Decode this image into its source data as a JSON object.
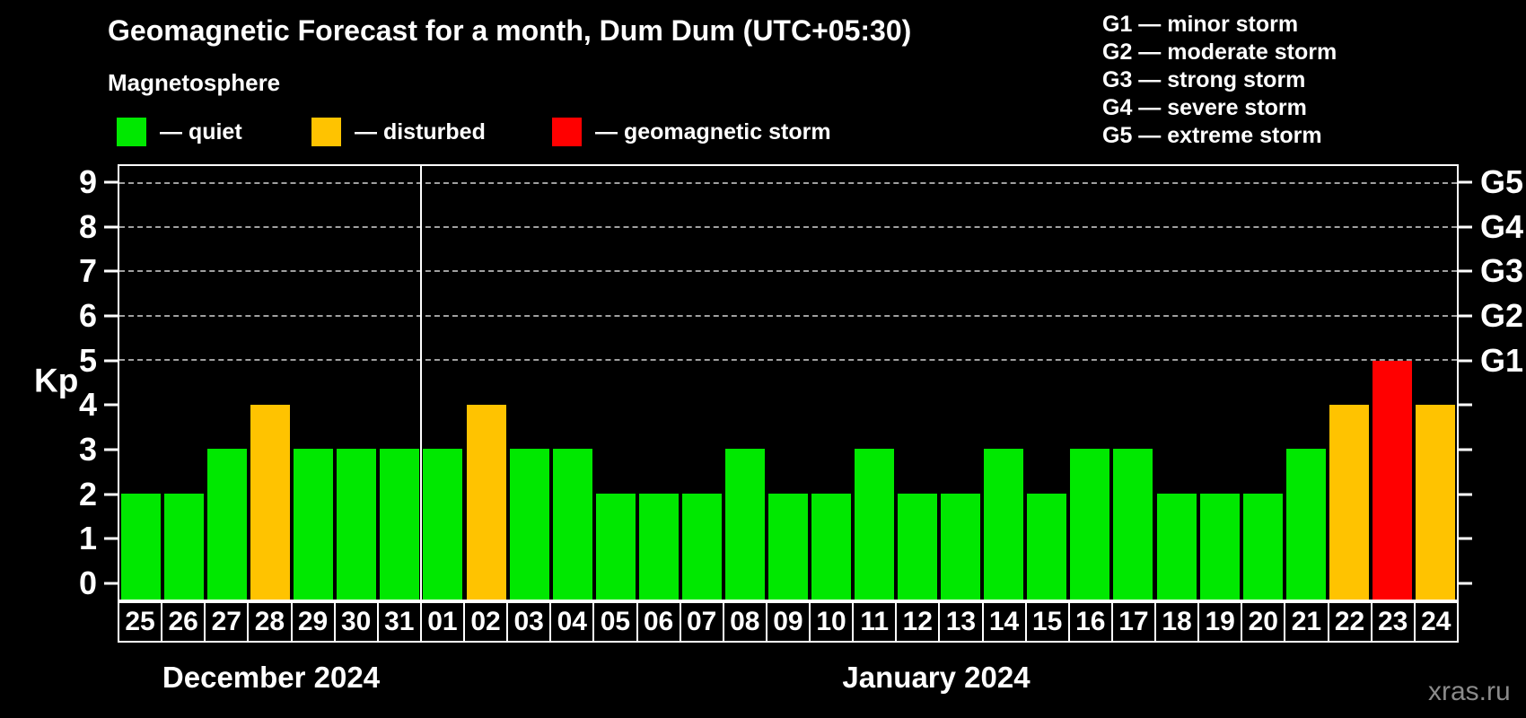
{
  "title": "Geomagnetic Forecast for a month, Dum Dum (UTC+05:30)",
  "subtitle": "Magnetosphere",
  "legend": {
    "items": [
      {
        "key": "quiet",
        "label": "— quiet",
        "color": "#00e800"
      },
      {
        "key": "disturbed",
        "label": "— disturbed",
        "color": "#ffc300"
      },
      {
        "key": "storm",
        "label": "— geomagnetic storm",
        "color": "#ff0000"
      }
    ]
  },
  "g_scale_legend": [
    "G1 — minor storm",
    "G2 — moderate storm",
    "G3 — strong storm",
    "G4 — severe storm",
    "G5 — extreme storm"
  ],
  "axis": {
    "y_label": "Kp",
    "y_ticks": [
      0,
      1,
      2,
      3,
      4,
      5,
      6,
      7,
      8,
      9
    ],
    "g_levels": [
      {
        "label": "G1",
        "kp": 5
      },
      {
        "label": "G2",
        "kp": 6
      },
      {
        "label": "G3",
        "kp": 7
      },
      {
        "label": "G4",
        "kp": 8
      },
      {
        "label": "G5",
        "kp": 9
      }
    ]
  },
  "months": [
    {
      "label": "December 2024",
      "days": 7
    },
    {
      "label": "January 2024",
      "days": 24
    }
  ],
  "watermark": "xras.ru",
  "colors": {
    "background": "#000000",
    "text": "#ffffff",
    "gridline": "#a0a0a0",
    "watermark": "#8a8a8a"
  },
  "chart_data": {
    "type": "bar",
    "title": "Geomagnetic Forecast for a month, Dum Dum (UTC+05:30)",
    "ylabel": "Kp",
    "ylim": [
      -0.4,
      9.4
    ],
    "grid": "dashed horizontal at Kp 5-9 only",
    "legend_position": "top-left colors, top-right G-scale",
    "gridlines_at": [
      5,
      6,
      7,
      8,
      9
    ],
    "separator_after_index": 6,
    "categories": [
      "25",
      "26",
      "27",
      "28",
      "29",
      "30",
      "31",
      "01",
      "02",
      "03",
      "04",
      "05",
      "06",
      "07",
      "08",
      "09",
      "10",
      "11",
      "12",
      "13",
      "14",
      "15",
      "16",
      "17",
      "18",
      "19",
      "20",
      "21",
      "22",
      "23",
      "24"
    ],
    "values": [
      2,
      2,
      3,
      4,
      3,
      3,
      3,
      3,
      4,
      3,
      3,
      2,
      2,
      2,
      3,
      2,
      2,
      3,
      2,
      2,
      3,
      2,
      3,
      3,
      2,
      2,
      2,
      3,
      4,
      5,
      4
    ],
    "statuses": [
      "quiet",
      "quiet",
      "quiet",
      "disturbed",
      "quiet",
      "quiet",
      "quiet",
      "quiet",
      "disturbed",
      "quiet",
      "quiet",
      "quiet",
      "quiet",
      "quiet",
      "quiet",
      "quiet",
      "quiet",
      "quiet",
      "quiet",
      "quiet",
      "quiet",
      "quiet",
      "quiet",
      "quiet",
      "quiet",
      "quiet",
      "quiet",
      "quiet",
      "disturbed",
      "storm",
      "disturbed"
    ]
  }
}
